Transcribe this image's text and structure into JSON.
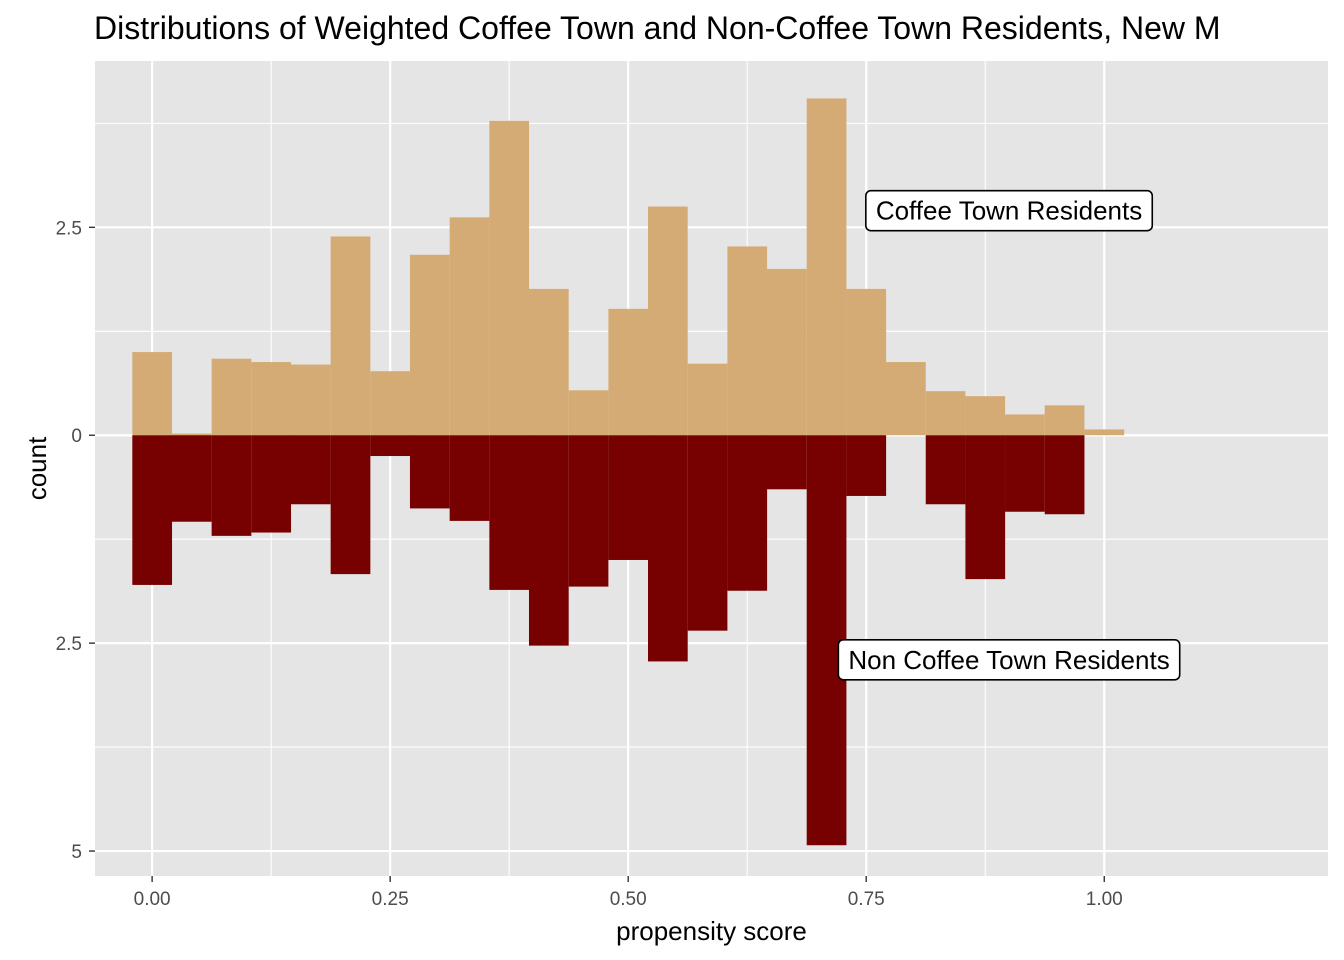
{
  "chart_data": {
    "type": "bar",
    "title": "Distributions of Weighted Coffee Town and Non-Coffee Town Residents, New M",
    "xlabel": "propensity score",
    "ylabel": "count",
    "xlim": [
      -0.06,
      1.235
    ],
    "ylim": [
      -5.3,
      4.5
    ],
    "x_ticks": [
      {
        "value": 0.0,
        "label": "0.00"
      },
      {
        "value": 0.25,
        "label": "0.25"
      },
      {
        "value": 0.5,
        "label": "0.50"
      },
      {
        "value": 0.75,
        "label": "0.75"
      },
      {
        "value": 1.0,
        "label": "1.00"
      }
    ],
    "y_ticks": [
      {
        "value": 2.5,
        "label": "2.5"
      },
      {
        "value": 0,
        "label": "0"
      },
      {
        "value": -2.5,
        "label": "2.5"
      },
      {
        "value": -5,
        "label": "5"
      }
    ],
    "bin_width": 0.0417,
    "bin_starts": [
      -0.0208,
      0.0208,
      0.0625,
      0.1042,
      0.1458,
      0.1875,
      0.2292,
      0.2708,
      0.3125,
      0.3542,
      0.3958,
      0.4375,
      0.4792,
      0.5208,
      0.5625,
      0.6042,
      0.6458,
      0.6875,
      0.7292,
      0.7708,
      0.8125,
      0.8542,
      0.8958,
      0.9375,
      0.9792
    ],
    "series": [
      {
        "name": "Coffee Town Residents",
        "color": "#D5AB75",
        "values": [
          1.0,
          0.02,
          0.92,
          0.88,
          0.85,
          2.39,
          0.77,
          2.17,
          2.62,
          3.78,
          1.76,
          0.54,
          1.52,
          2.75,
          0.86,
          2.27,
          2.0,
          4.05,
          1.76,
          0.88,
          0.53,
          0.47,
          0.25,
          0.36,
          0.07
        ]
      },
      {
        "name": "Non Coffee Town Residents",
        "color": "#770000",
        "values": [
          -1.8,
          -1.04,
          -1.21,
          -1.17,
          -0.83,
          -1.67,
          -0.25,
          -0.88,
          -1.03,
          -1.86,
          -2.53,
          -1.82,
          -1.5,
          -2.72,
          -2.35,
          -1.87,
          -0.65,
          -4.93,
          -0.73,
          0.0,
          -0.83,
          -1.73,
          -0.92,
          -0.95,
          0.0
        ]
      }
    ],
    "annotations": [
      {
        "text": "Coffee Town Residents",
        "x": 0.9,
        "y": 2.7
      },
      {
        "text": "Non Coffee Town Residents",
        "x": 0.9,
        "y": -2.7
      }
    ],
    "panel_background": "#E5E5E5",
    "grid": true,
    "legend": "none"
  }
}
